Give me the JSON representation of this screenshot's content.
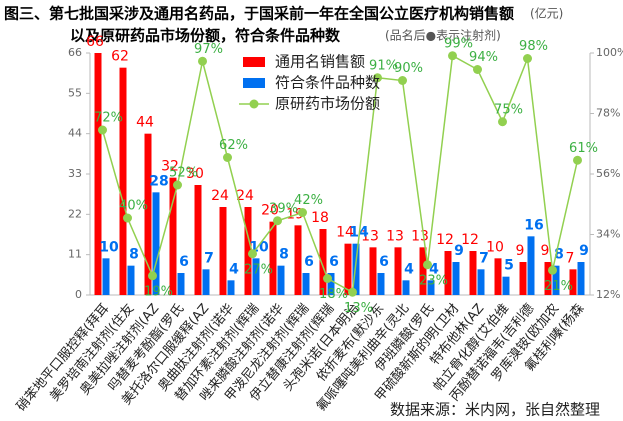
{
  "chart_data": {
    "type": "bar",
    "title": "图三、第七批国采涉及通用名药品，于国采前一年在全国公立医疗机构销售额",
    "title_unit": "(亿元)",
    "subtitle": "以及原研药品市场份额，符合条件品种数",
    "note": "(品名后●表示注射剂)",
    "source": "数据来源：米内网，张自然整理",
    "categories": [
      "硝苯地平口服控释(拜耳",
      "美罗培南注射剂(住友",
      "奥美拉唑注射剂(AZ",
      "吗替麦考酚酯(罗氏",
      "美托洛尔口服缓释(AZ",
      "奥曲肽注射剂(诺华",
      "替加环素注射剂(辉瑞",
      "唑来膦酸注射剂(诺华",
      "甲泼尼龙注射剂(辉瑞",
      "伊立替康注射剂(辉瑞",
      "头孢米诺(日本明治",
      "依折麦布(默沙东",
      "氟哌噻吨美利曲辛(灵北",
      "伊班膦酸(罗氏",
      "甲硫酸新斯的明(卫材",
      "特布他林(AZ",
      "帕立骨化醇(艾伯维",
      "丙酚替诺福韦(吉利德",
      "罗库溴铵(欧加农",
      "氟桂利嗪(杨森"
    ],
    "series": [
      {
        "name": "通用名销售额",
        "color": "#ff0000",
        "type": "bar",
        "values": [
          66,
          62,
          44,
          32,
          30,
          24,
          24,
          20,
          19,
          18,
          14,
          13,
          13,
          13,
          12,
          12,
          10,
          9,
          9,
          7
        ]
      },
      {
        "name": "符合条件品种数",
        "color": "#0070f0",
        "type": "bar",
        "values": [
          10,
          8,
          28,
          6,
          7,
          4,
          10,
          8,
          6,
          6,
          14,
          6,
          4,
          4,
          9,
          7,
          5,
          16,
          8,
          9
        ]
      },
      {
        "name": "原研药市场份额",
        "color": "#92d050",
        "type": "line",
        "axis": "y2",
        "values": [
          72,
          40,
          19,
          52,
          97,
          62,
          27,
          39,
          42,
          18,
          13,
          91,
          90,
          23,
          99,
          94,
          75,
          98,
          21,
          61
        ],
        "value_labels": [
          "72%",
          "40%",
          "19%",
          "52%",
          "97%",
          "62%",
          "27%",
          "39%",
          "42%",
          "18%",
          "13%",
          "91%",
          "90%",
          "23%",
          "99%",
          "94%",
          "75%",
          "98%",
          "21%",
          "61%"
        ]
      }
    ],
    "ylim": [
      0,
      66
    ],
    "yticks": [
      0,
      11,
      22,
      33,
      44,
      55,
      66
    ],
    "y2lim": [
      12,
      100
    ],
    "y2ticks": [
      {
        "value": 12,
        "label": "12%"
      },
      {
        "value": 34,
        "label": "34%"
      },
      {
        "value": 56,
        "label": "56%"
      },
      {
        "value": 78,
        "label": "78%"
      },
      {
        "value": 100,
        "label": "100%"
      }
    ],
    "grid": false
  }
}
